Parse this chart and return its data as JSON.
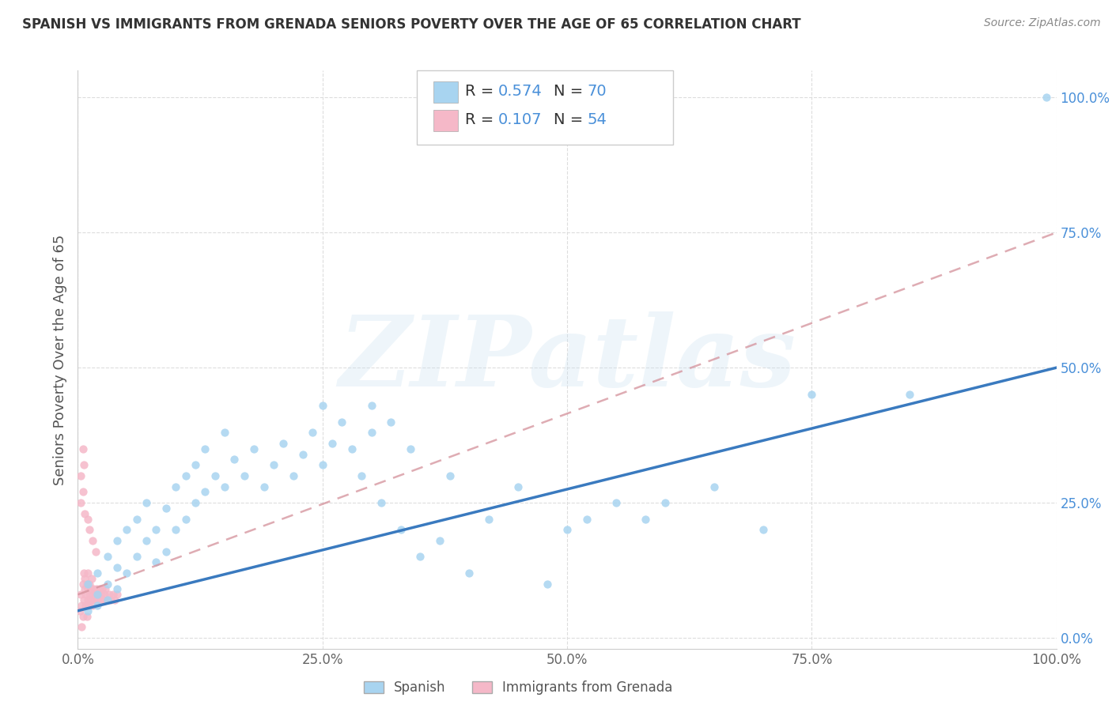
{
  "title": "SPANISH VS IMMIGRANTS FROM GRENADA SENIORS POVERTY OVER THE AGE OF 65 CORRELATION CHART",
  "source": "Source: ZipAtlas.com",
  "ylabel": "Seniors Poverty Over the Age of 65",
  "xlim": [
    0,
    1.0
  ],
  "ylim": [
    -0.02,
    1.05
  ],
  "xticks": [
    0.0,
    0.25,
    0.5,
    0.75,
    1.0
  ],
  "yticks": [
    0.0,
    0.25,
    0.5,
    0.75,
    1.0
  ],
  "xticklabels": [
    "0.0%",
    "25.0%",
    "50.0%",
    "75.0%",
    "100.0%"
  ],
  "yticklabels": [
    "0.0%",
    "25.0%",
    "50.0%",
    "75.0%",
    "100.0%"
  ],
  "spanish_color": "#a8d4f0",
  "grenada_color": "#f5b8c8",
  "spanish_line_color": "#3a7abf",
  "grenada_line_color": "#d4909a",
  "watermark": "ZIPatlas",
  "legend_label_1": "Spanish",
  "legend_label_2": "Immigrants from Grenada",
  "spanish_R": 0.574,
  "spanish_N": 70,
  "grenada_R": 0.107,
  "grenada_N": 54,
  "spanish_x": [
    0.01,
    0.01,
    0.02,
    0.02,
    0.02,
    0.03,
    0.03,
    0.03,
    0.04,
    0.04,
    0.04,
    0.05,
    0.05,
    0.06,
    0.06,
    0.07,
    0.07,
    0.08,
    0.08,
    0.09,
    0.09,
    0.1,
    0.1,
    0.11,
    0.11,
    0.12,
    0.12,
    0.13,
    0.13,
    0.14,
    0.15,
    0.15,
    0.16,
    0.17,
    0.18,
    0.19,
    0.2,
    0.21,
    0.22,
    0.23,
    0.24,
    0.25,
    0.26,
    0.27,
    0.28,
    0.29,
    0.3,
    0.31,
    0.32,
    0.33,
    0.34,
    0.35,
    0.37,
    0.38,
    0.4,
    0.42,
    0.45,
    0.48,
    0.5,
    0.52,
    0.55,
    0.58,
    0.6,
    0.65,
    0.7,
    0.75,
    0.3,
    0.25,
    0.85,
    0.99
  ],
  "spanish_y": [
    0.05,
    0.1,
    0.08,
    0.12,
    0.06,
    0.1,
    0.15,
    0.07,
    0.13,
    0.18,
    0.09,
    0.12,
    0.2,
    0.15,
    0.22,
    0.18,
    0.25,
    0.14,
    0.2,
    0.16,
    0.24,
    0.2,
    0.28,
    0.22,
    0.3,
    0.25,
    0.32,
    0.27,
    0.35,
    0.3,
    0.28,
    0.38,
    0.33,
    0.3,
    0.35,
    0.28,
    0.32,
    0.36,
    0.3,
    0.34,
    0.38,
    0.32,
    0.36,
    0.4,
    0.35,
    0.3,
    0.38,
    0.25,
    0.4,
    0.2,
    0.35,
    0.15,
    0.18,
    0.3,
    0.12,
    0.22,
    0.28,
    0.1,
    0.2,
    0.22,
    0.25,
    0.22,
    0.25,
    0.28,
    0.2,
    0.45,
    0.43,
    0.43,
    0.45,
    1.0
  ],
  "grenada_x": [
    0.002,
    0.003,
    0.004,
    0.005,
    0.005,
    0.006,
    0.006,
    0.007,
    0.007,
    0.008,
    0.008,
    0.009,
    0.009,
    0.01,
    0.01,
    0.01,
    0.011,
    0.012,
    0.012,
    0.013,
    0.013,
    0.014,
    0.015,
    0.015,
    0.016,
    0.017,
    0.018,
    0.019,
    0.02,
    0.021,
    0.022,
    0.023,
    0.024,
    0.025,
    0.026,
    0.027,
    0.028,
    0.03,
    0.032,
    0.034,
    0.036,
    0.038,
    0.04,
    0.003,
    0.005,
    0.007,
    0.01,
    0.012,
    0.015,
    0.018,
    0.005,
    0.003,
    0.006,
    0.004
  ],
  "grenada_y": [
    0.05,
    0.08,
    0.06,
    0.1,
    0.04,
    0.12,
    0.07,
    0.09,
    0.11,
    0.06,
    0.08,
    0.1,
    0.04,
    0.07,
    0.09,
    0.12,
    0.06,
    0.08,
    0.1,
    0.07,
    0.09,
    0.11,
    0.06,
    0.08,
    0.09,
    0.07,
    0.08,
    0.09,
    0.07,
    0.08,
    0.09,
    0.07,
    0.08,
    0.09,
    0.07,
    0.08,
    0.09,
    0.07,
    0.08,
    0.07,
    0.08,
    0.07,
    0.08,
    0.25,
    0.27,
    0.23,
    0.22,
    0.2,
    0.18,
    0.16,
    0.35,
    0.3,
    0.32,
    0.02
  ],
  "spanish_line_x": [
    0.0,
    1.0
  ],
  "spanish_line_y": [
    0.05,
    0.5
  ],
  "grenada_line_x": [
    0.0,
    1.0
  ],
  "grenada_line_y": [
    0.08,
    0.75
  ]
}
